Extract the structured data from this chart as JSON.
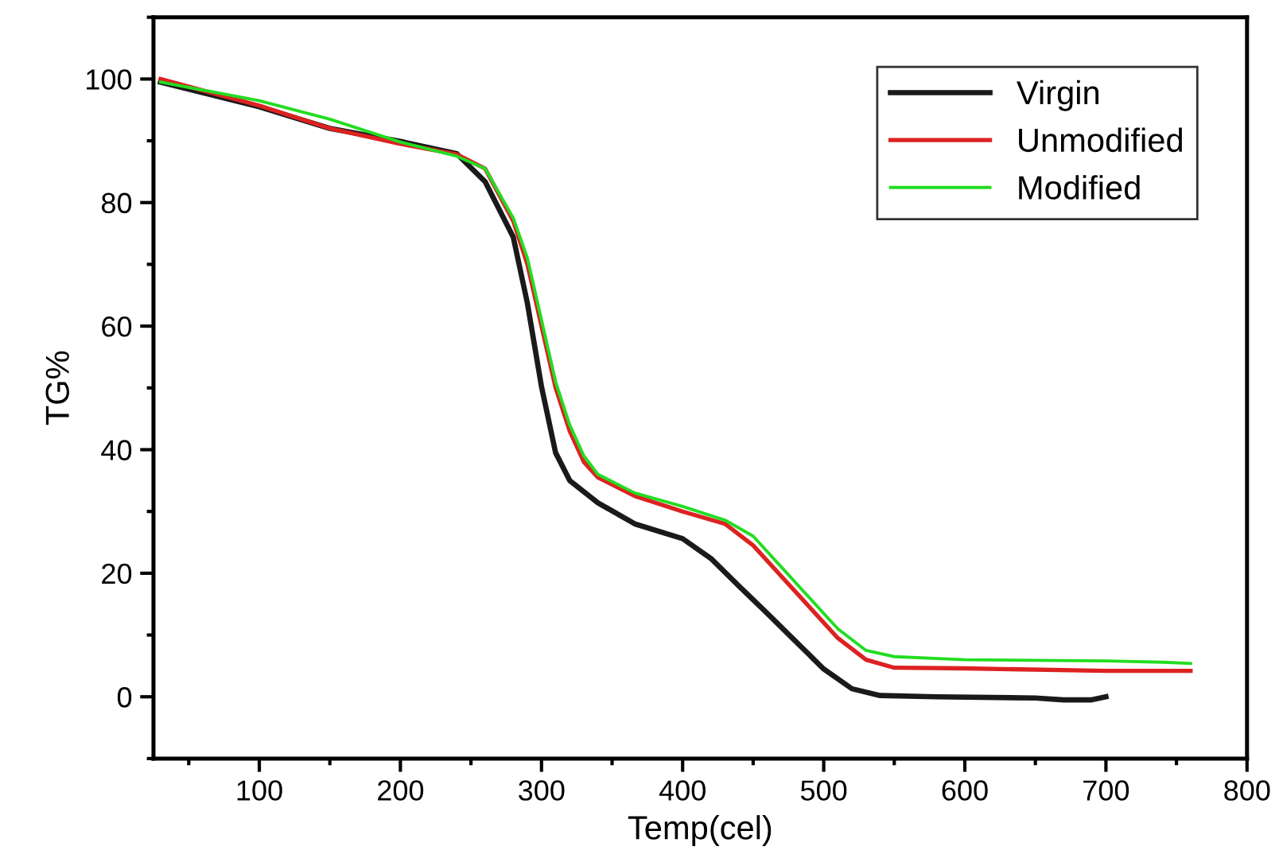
{
  "chart_data": {
    "type": "line",
    "xlabel": "Temp(cel)",
    "ylabel": "TG%",
    "xlim": [
      25,
      800
    ],
    "xticks": [
      100,
      200,
      300,
      400,
      500,
      600,
      700,
      800
    ],
    "ylim": [
      -10,
      110
    ],
    "yticks": [
      0,
      20,
      40,
      60,
      80,
      100
    ],
    "grid": false,
    "legend": "top right",
    "marker": "none",
    "line_style": "solid",
    "series": [
      {
        "name": "Virgin",
        "color": "#1a1a1a",
        "x": [
          30,
          100,
          150,
          200,
          240,
          260,
          280,
          290,
          300,
          310,
          320,
          340,
          366,
          400,
          420,
          440,
          460,
          480,
          500,
          520,
          540,
          580,
          650,
          670,
          690,
          700
        ],
        "values": [
          99.5,
          95.5,
          92,
          89.9,
          87.9,
          83.4,
          74.4,
          63.7,
          50.2,
          39.5,
          35,
          31.4,
          28,
          25.6,
          22.4,
          17.9,
          13.5,
          9,
          4.5,
          1.3,
          0.2,
          0,
          -0.2,
          -0.5,
          -0.5,
          0
        ]
      },
      {
        "name": "Unmodified",
        "color": "#dd2222",
        "x": [
          30,
          100,
          150,
          200,
          240,
          260,
          280,
          290,
          300,
          310,
          320,
          330,
          340,
          366,
          400,
          430,
          450,
          470,
          490,
          510,
          530,
          550,
          600,
          700,
          760
        ],
        "values": [
          100,
          95.7,
          92,
          89.5,
          87.8,
          85.5,
          77,
          70,
          60,
          50,
          43,
          38,
          35.5,
          32.5,
          30,
          28,
          24.5,
          19.5,
          14.5,
          9.5,
          6,
          4.7,
          4.6,
          4.2,
          4.2
        ]
      },
      {
        "name": "Modified",
        "color": "#22dd22",
        "x": [
          30,
          100,
          150,
          200,
          240,
          260,
          280,
          290,
          300,
          310,
          320,
          330,
          340,
          366,
          400,
          430,
          450,
          470,
          490,
          510,
          530,
          550,
          600,
          700,
          740,
          760
        ],
        "values": [
          99.5,
          96.5,
          93.5,
          89.8,
          87.5,
          85.5,
          77.5,
          71,
          61,
          51,
          44,
          39,
          36,
          33,
          30.8,
          28.6,
          26,
          21,
          16,
          11,
          7.5,
          6.5,
          6,
          5.8,
          5.6,
          5.4
        ]
      }
    ]
  }
}
